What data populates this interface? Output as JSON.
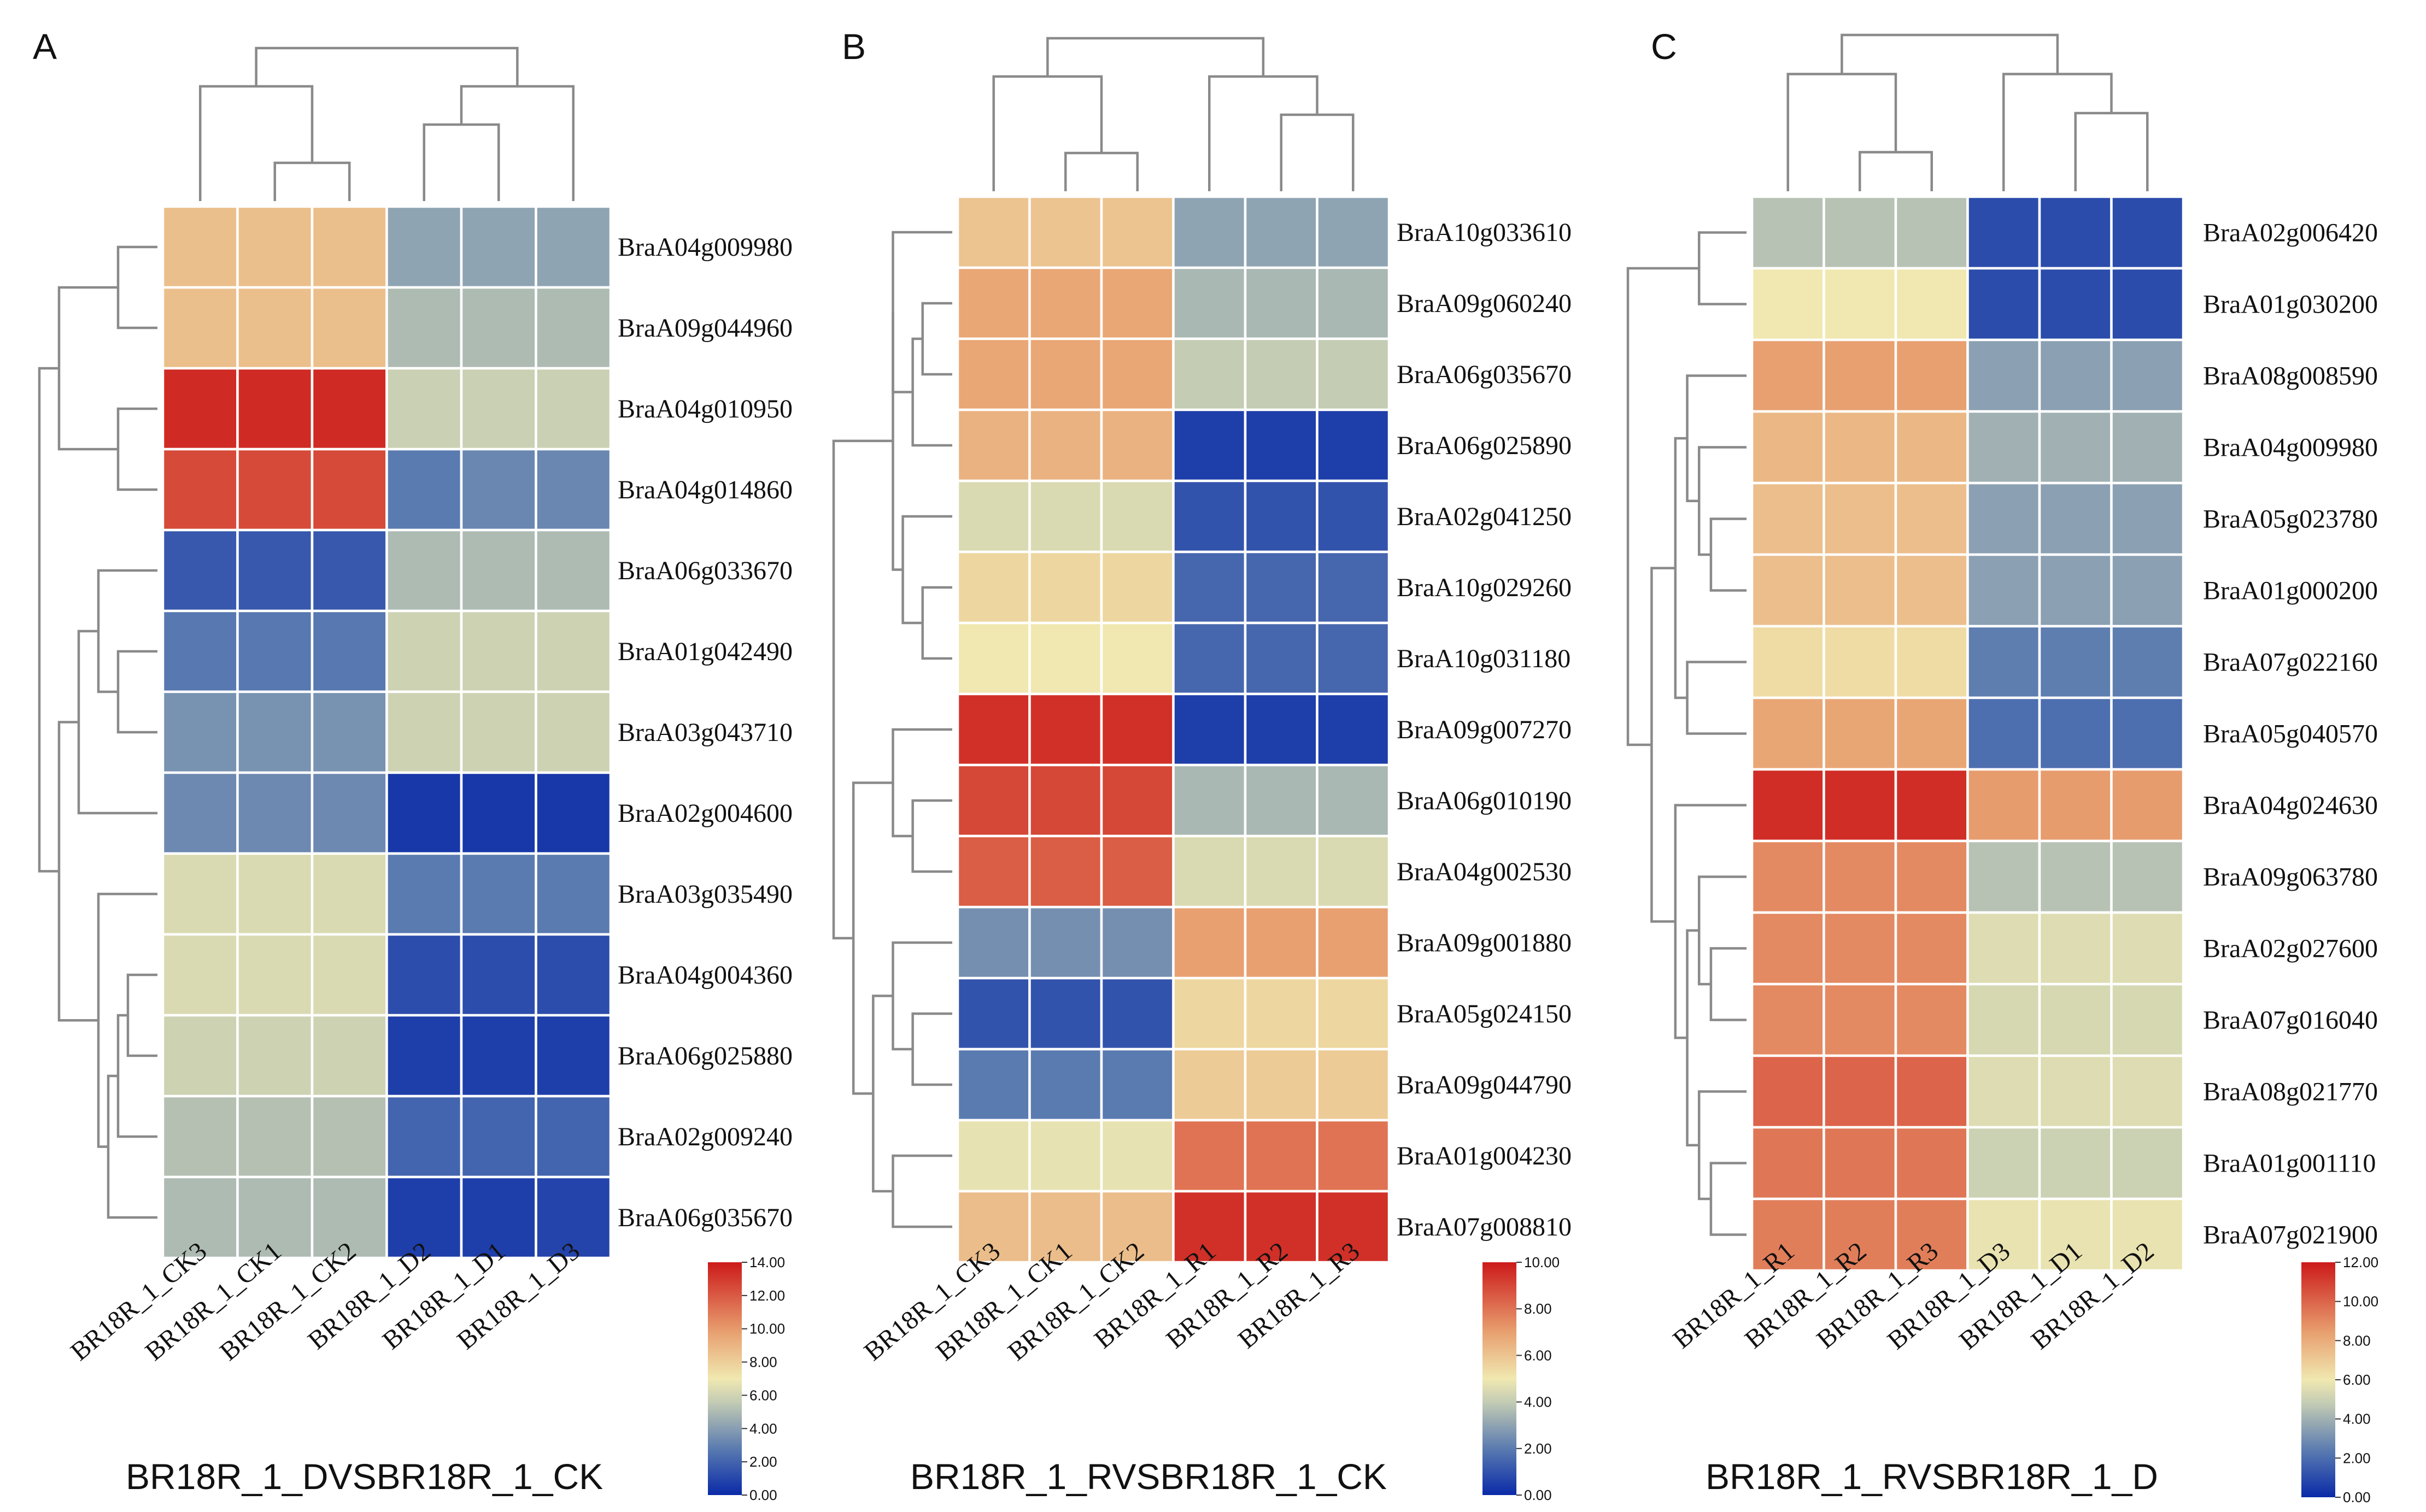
{
  "colors": {
    "scale_stops": [
      "#0a2aa8",
      "#5a7bb0",
      "#c4ccb4",
      "#f0e8b0",
      "#e8a070",
      "#cc1a1a"
    ]
  },
  "chart_data": [
    {
      "type": "heatmap",
      "panel": "A",
      "title": "BR18R_1_DVSBR18R_1_CK",
      "columns": [
        "BR18R_1_CK3",
        "BR18R_1_CK1",
        "BR18R_1_CK2",
        "BR18R_1_D2",
        "BR18R_1_D1",
        "BR18R_1_D3"
      ],
      "rows": [
        "BraA04g009980",
        "BraA09g044960",
        "BraA04g010950",
        "BraA04g014860",
        "BraA06g033670",
        "BraA01g042490",
        "BraA03g043710",
        "BraA02g004600",
        "BraA03g035490",
        "BraA04g004360",
        "BraA06g025880",
        "BraA02g009240",
        "BraA06g035670"
      ],
      "values": [
        [
          8.6,
          8.6,
          8.6,
          4.2,
          4.2,
          4.2
        ],
        [
          8.6,
          8.6,
          8.6,
          5.0,
          5.0,
          5.0
        ],
        [
          13.5,
          13.5,
          13.5,
          5.8,
          5.8,
          5.8
        ],
        [
          12.5,
          12.5,
          12.5,
          2.8,
          3.2,
          3.2
        ],
        [
          1.6,
          1.6,
          1.6,
          5.0,
          5.0,
          5.0
        ],
        [
          2.7,
          2.7,
          2.7,
          5.9,
          5.9,
          5.9
        ],
        [
          3.6,
          3.6,
          3.6,
          5.9,
          5.9,
          5.9
        ],
        [
          3.3,
          3.3,
          3.3,
          0.5,
          0.5,
          0.5
        ],
        [
          6.3,
          6.3,
          6.3,
          2.8,
          2.8,
          2.8
        ],
        [
          6.3,
          6.3,
          6.3,
          1.2,
          1.2,
          1.2
        ],
        [
          5.9,
          5.9,
          5.9,
          0.7,
          0.7,
          0.7
        ],
        [
          5.2,
          5.2,
          5.2,
          2.0,
          2.0,
          2.0
        ],
        [
          5.0,
          5.0,
          5.0,
          0.7,
          0.7,
          0.9
        ]
      ],
      "scale": {
        "min": 0,
        "max": 14,
        "ticks": [
          "14.00",
          "12.00",
          "10.00",
          "8.00",
          "6.00",
          "4.00",
          "2.00",
          "0.00"
        ]
      },
      "col_dendrogram": [
        [
          1,
          2,
          0
        ],
        [
          3,
          4,
          1
        ],
        [
          0,
          6,
          2
        ],
        [
          5,
          7,
          2
        ],
        [
          8,
          9,
          3
        ]
      ],
      "row_dendrogram": [
        [
          0,
          1,
          1
        ],
        [
          2,
          3,
          1
        ],
        [
          5,
          6,
          1
        ],
        [
          15,
          4,
          2
        ],
        [
          16,
          7,
          3
        ],
        [
          13,
          14,
          4
        ],
        [
          9,
          10,
          0.5
        ],
        [
          19,
          11,
          1
        ],
        [
          20,
          12,
          1.5
        ],
        [
          21,
          8,
          2
        ],
        [
          17,
          22,
          4
        ],
        [
          18,
          23,
          5
        ]
      ]
    },
    {
      "type": "heatmap",
      "panel": "B",
      "title": "BR18R_1_RVSBR18R_1_CK",
      "columns": [
        "BR18R_1_CK3",
        "BR18R_1_CK1",
        "BR18R_1_CK2",
        "BR18R_1_R1",
        "BR18R_1_R2",
        "BR18R_1_R3"
      ],
      "rows": [
        "BraA10g033610",
        "BraA09g060240",
        "BraA06g035670",
        "BraA06g025890",
        "BraA02g041250",
        "BraA10g029260",
        "BraA10g031180",
        "BraA09g007270",
        "BraA06g010190",
        "BraA04g002530",
        "BraA09g001880",
        "BraA05g024150",
        "BraA09g044790",
        "BraA01g004230",
        "BraA07g008810"
      ],
      "values": [
        [
          6.0,
          6.0,
          6.0,
          3.0,
          3.0,
          3.0
        ],
        [
          6.8,
          6.8,
          6.8,
          3.5,
          3.5,
          3.5
        ],
        [
          6.8,
          6.8,
          6.8,
          4.0,
          4.0,
          4.0
        ],
        [
          6.5,
          6.5,
          6.5,
          0.5,
          0.5,
          0.5
        ],
        [
          4.5,
          4.5,
          4.5,
          1.0,
          1.0,
          1.0
        ],
        [
          5.5,
          5.5,
          5.5,
          1.5,
          1.5,
          1.5
        ],
        [
          5.0,
          5.0,
          5.0,
          1.5,
          1.5,
          1.5
        ],
        [
          9.5,
          9.5,
          9.5,
          0.5,
          0.5,
          0.5
        ],
        [
          9.0,
          9.0,
          9.0,
          3.5,
          3.5,
          3.5
        ],
        [
          8.5,
          8.5,
          8.5,
          4.5,
          4.5,
          4.5
        ],
        [
          2.5,
          2.5,
          2.5,
          7.0,
          7.0,
          7.0
        ],
        [
          1.0,
          1.0,
          1.0,
          5.5,
          5.5,
          5.5
        ],
        [
          2.0,
          2.0,
          2.0,
          5.8,
          5.8,
          5.8
        ],
        [
          4.8,
          4.8,
          4.8,
          8.0,
          8.0,
          8.0
        ],
        [
          6.2,
          6.2,
          6.2,
          9.5,
          9.5,
          9.5
        ]
      ],
      "scale": {
        "min": 0,
        "max": 10,
        "ticks": [
          "10.00",
          "8.00",
          "6.00",
          "4.00",
          "2.00",
          "0.00"
        ]
      },
      "col_dendrogram": [
        [
          1,
          2,
          0
        ],
        [
          4,
          5,
          1
        ],
        [
          0,
          6,
          2
        ],
        [
          3,
          7,
          2
        ],
        [
          8,
          9,
          3
        ]
      ],
      "row_dendrogram": [
        [
          1,
          2,
          0.5
        ],
        [
          5,
          6,
          0.5
        ],
        [
          15,
          3,
          1
        ],
        [
          16,
          4,
          1.5
        ],
        [
          17,
          0,
          2
        ],
        [
          19,
          18,
          2
        ],
        [
          8,
          9,
          1
        ],
        [
          21,
          7,
          2
        ],
        [
          11,
          12,
          1
        ],
        [
          23,
          10,
          2
        ],
        [
          13,
          14,
          2
        ],
        [
          24,
          25,
          3
        ],
        [
          22,
          26,
          4
        ],
        [
          20,
          27,
          5
        ]
      ]
    },
    {
      "type": "heatmap",
      "panel": "C",
      "title": "BR18R_1_RVSBR18R_1_D",
      "columns": [
        "BR18R_1_R1",
        "BR18R_1_R2",
        "BR18R_1_R3",
        "BR18R_1_D3",
        "BR18R_1_D1",
        "BR18R_1_D2"
      ],
      "rows": [
        "BraA02g006420",
        "BraA01g030200",
        "BraA08g008590",
        "BraA04g009980",
        "BraA05g023780",
        "BraA01g000200",
        "BraA07g022160",
        "BraA05g040570",
        "BraA04g024630",
        "BraA09g063780",
        "BraA02g027600",
        "BraA07g016040",
        "BraA08g021770",
        "BraA01g001110",
        "BraA07g021900"
      ],
      "values": [
        [
          4.5,
          4.5,
          4.5,
          1.0,
          1.0,
          1.0
        ],
        [
          6.0,
          6.0,
          6.0,
          1.0,
          1.0,
          1.0
        ],
        [
          8.4,
          8.4,
          8.4,
          3.5,
          3.5,
          3.5
        ],
        [
          7.6,
          7.6,
          7.6,
          4.0,
          4.0,
          4.0
        ],
        [
          7.4,
          7.4,
          7.4,
          3.5,
          3.5,
          3.5
        ],
        [
          7.4,
          7.4,
          7.4,
          3.5,
          3.5,
          3.5
        ],
        [
          6.4,
          6.4,
          6.4,
          2.5,
          2.5,
          2.5
        ],
        [
          8.2,
          8.2,
          8.2,
          2.0,
          2.0,
          2.0
        ],
        [
          11.5,
          11.5,
          11.5,
          8.5,
          8.5,
          8.5
        ],
        [
          9.0,
          9.0,
          9.0,
          4.5,
          4.5,
          4.5
        ],
        [
          9.0,
          9.0,
          9.0,
          5.5,
          5.5,
          5.5
        ],
        [
          9.0,
          9.0,
          9.0,
          5.3,
          5.3,
          5.3
        ],
        [
          10.0,
          10.0,
          10.0,
          5.5,
          5.5,
          5.5
        ],
        [
          9.5,
          9.5,
          9.5,
          5.0,
          5.0,
          5.0
        ],
        [
          9.3,
          9.3,
          9.3,
          5.8,
          5.8,
          5.8
        ]
      ],
      "scale": {
        "min": 0,
        "max": 12,
        "ticks": [
          "12.00",
          "10.00",
          "8.00",
          "6.00",
          "4.00",
          "2.00",
          "0.00"
        ]
      },
      "col_dendrogram": [
        [
          1,
          2,
          0
        ],
        [
          4,
          5,
          1
        ],
        [
          0,
          6,
          2
        ],
        [
          3,
          7,
          2
        ],
        [
          8,
          9,
          3
        ]
      ],
      "row_dendrogram": [
        [
          0,
          1,
          1
        ],
        [
          4,
          5,
          0.5
        ],
        [
          3,
          16,
          1
        ],
        [
          17,
          2,
          1.5
        ],
        [
          6,
          7,
          1.5
        ],
        [
          18,
          19,
          2
        ],
        [
          11,
          10,
          0.5
        ],
        [
          21,
          9,
          1
        ],
        [
          13,
          14,
          0.5
        ],
        [
          12,
          23,
          1
        ],
        [
          22,
          24,
          1.5
        ],
        [
          8,
          25,
          2
        ],
        [
          20,
          26,
          3
        ],
        [
          15,
          27,
          4
        ]
      ]
    }
  ]
}
